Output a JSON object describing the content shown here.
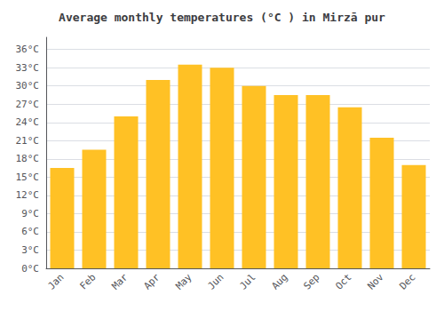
{
  "chart_data": {
    "type": "bar",
    "title": "Average monthly temperatures (°C ) in Mirzā pur",
    "categories": [
      "Jan",
      "Feb",
      "Mar",
      "Apr",
      "May",
      "Jun",
      "Jul",
      "Aug",
      "Sep",
      "Oct",
      "Nov",
      "Dec"
    ],
    "values": [
      16.5,
      19.5,
      25.0,
      31.0,
      33.5,
      33.0,
      30.0,
      28.5,
      28.5,
      26.5,
      21.5,
      17.0
    ],
    "color": "#FFC125",
    "ylim": [
      0,
      38
    ],
    "yticks": [
      {
        "value": 0,
        "label": "0°C"
      },
      {
        "value": 3,
        "label": "3°C"
      },
      {
        "value": 6,
        "label": "6°C"
      },
      {
        "value": 9,
        "label": "9°C"
      },
      {
        "value": 12,
        "label": "12°C"
      },
      {
        "value": 15,
        "label": "15°C"
      },
      {
        "value": 18,
        "label": "18°C"
      },
      {
        "value": 21,
        "label": "21°C"
      },
      {
        "value": 24,
        "label": "24°C"
      },
      {
        "value": 27,
        "label": "27°C"
      },
      {
        "value": 30,
        "label": "30°C"
      },
      {
        "value": 33,
        "label": "33°C"
      },
      {
        "value": 36,
        "label": "36°C"
      }
    ],
    "grid": true
  }
}
